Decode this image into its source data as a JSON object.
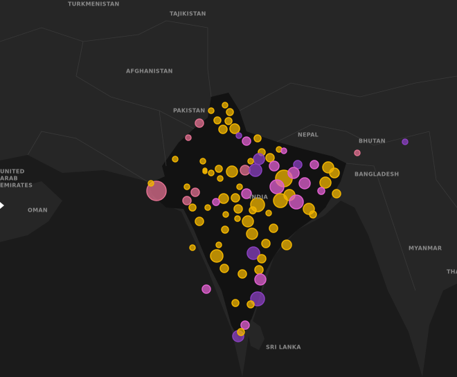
{
  "map": {
    "labels": [
      "TURKMENISTAN",
      "TAJIKISTAN",
      "AFGHANISTAN",
      "PAKISTAN",
      "NEPAL",
      "BHUTAN",
      "BANGLADESH",
      "INDIA",
      "UNITED",
      "ARAB",
      "EMIRATES",
      "OMAN",
      "MYANMAR",
      "THA",
      "SRI LANKA"
    ]
  }
}
